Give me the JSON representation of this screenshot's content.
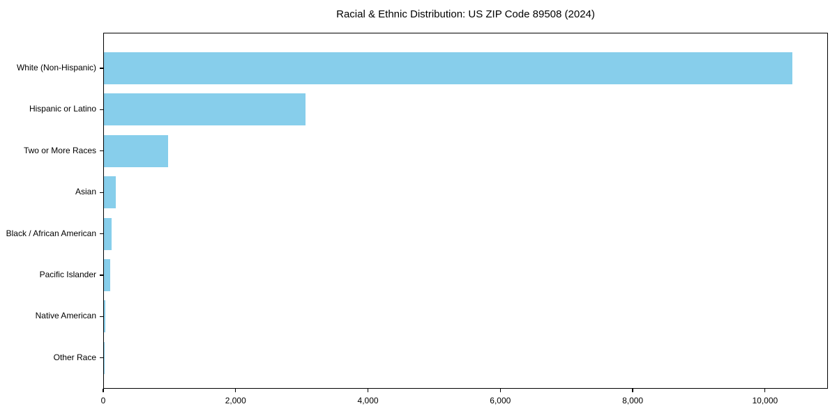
{
  "title": "Racial & Ethnic Distribution: US ZIP Code 89508 (2024)",
  "chart_data": {
    "type": "bar",
    "orientation": "horizontal",
    "title": "Racial & Ethnic Distribution: US ZIP Code 89508 (2024)",
    "xlabel": "",
    "ylabel": "",
    "categories": [
      "White (Non-Hispanic)",
      "Hispanic or Latino",
      "Two or More Races",
      "Asian",
      "Black / African American",
      "Pacific Islander",
      "Native American",
      "Other Race"
    ],
    "values": [
      10400,
      3050,
      970,
      180,
      120,
      100,
      20,
      10
    ],
    "xlim": [
      0,
      10950
    ],
    "xticks": {
      "values": [
        0,
        2000,
        4000,
        6000,
        8000,
        10000
      ],
      "labels": [
        "0",
        "2,000",
        "4,000",
        "6,000",
        "8,000",
        "10,000"
      ]
    },
    "bar_color": "#87CEEB",
    "background": "#FFFFFF",
    "grid": false,
    "legend": null
  }
}
